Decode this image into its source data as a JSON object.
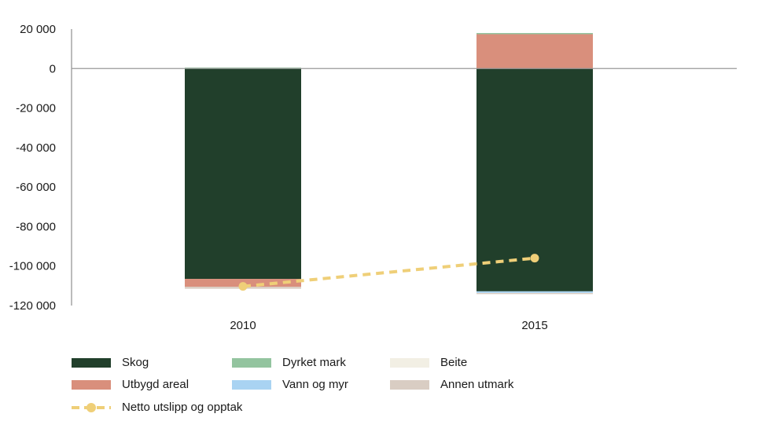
{
  "chart_data": {
    "type": "bar",
    "stacked": true,
    "title": "",
    "xlabel": "",
    "ylabel": "",
    "categories": [
      "2010",
      "2015"
    ],
    "ylim": [
      -120000,
      20000
    ],
    "yticks": [
      20000,
      0,
      -20000,
      -40000,
      -60000,
      -80000,
      -100000,
      -120000
    ],
    "ytick_labels": [
      "20 000",
      "0",
      "-20 000",
      "-40 000",
      "-60 000",
      "-80 000",
      "-100 000",
      "-120 000"
    ],
    "grid": false,
    "legend_position": "bottom",
    "series": [
      {
        "name": "Skog",
        "color": "#213f2b",
        "values": [
          -106500,
          -112800
        ]
      },
      {
        "name": "Dyrket mark",
        "color": "#93c49f",
        "values": [
          500,
          500
        ]
      },
      {
        "name": "Beite",
        "color": "#f2efe4",
        "values": [
          0,
          0
        ]
      },
      {
        "name": "Utbygd areal",
        "color": "#d98f7c",
        "values": [
          -4000,
          17500
        ]
      },
      {
        "name": "Vann og myr",
        "color": "#a9d3f2",
        "values": [
          0,
          -800
        ]
      },
      {
        "name": "Annen utmark",
        "color": "#d9cdc3",
        "values": [
          -1000,
          -600
        ]
      }
    ],
    "line_series": [
      {
        "name": "Netto utslipp og opptak",
        "color": "#efcf78",
        "style": "dashed",
        "values": [
          -110300,
          -96000
        ]
      }
    ]
  },
  "legend": {
    "items": [
      {
        "label": "Skog",
        "color": "#213f2b"
      },
      {
        "label": "Dyrket mark",
        "color": "#93c49f"
      },
      {
        "label": "Beite",
        "color": "#f2efe4"
      },
      {
        "label": "Utbygd areal",
        "color": "#d98f7c"
      },
      {
        "label": "Vann og myr",
        "color": "#a9d3f2"
      },
      {
        "label": "Annen utmark",
        "color": "#d9cdc3"
      }
    ],
    "line_label": "Netto utslipp og opptak"
  }
}
